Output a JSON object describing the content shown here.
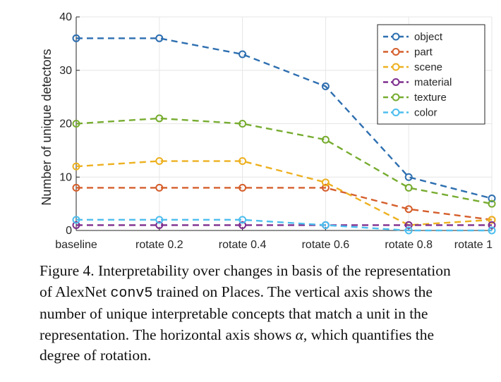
{
  "chart_data": {
    "type": "line",
    "categories": [
      "baseline",
      "rotate 0.2",
      "rotate 0.4",
      "rotate 0.6",
      "rotate 0.8",
      "rotate 1"
    ],
    "series": [
      {
        "name": "object",
        "color": "#2E6FB0",
        "values": [
          36,
          36,
          33,
          27,
          10,
          6
        ]
      },
      {
        "name": "part",
        "color": "#D55E2B",
        "values": [
          8,
          8,
          8,
          8,
          4,
          2
        ]
      },
      {
        "name": "scene",
        "color": "#EDB120",
        "values": [
          12,
          13,
          13,
          9,
          1,
          2
        ]
      },
      {
        "name": "material",
        "color": "#7E2F8E",
        "values": [
          1,
          1,
          1,
          1,
          1,
          1
        ]
      },
      {
        "name": "texture",
        "color": "#77AC30",
        "values": [
          20,
          21,
          20,
          17,
          8,
          5
        ]
      },
      {
        "name": "color",
        "color": "#4DBEEE",
        "values": [
          2,
          2,
          2,
          1,
          0,
          0
        ]
      }
    ],
    "ylabel": "Number of unique detectors",
    "xlabel": "",
    "ylim": [
      0,
      40
    ],
    "yticks": [
      0,
      10,
      20,
      30,
      40
    ],
    "grid": true,
    "legend_position": "top-right",
    "line_style": "dashed",
    "marker": "open-circle"
  },
  "caption": {
    "line1": "Figure 4. Interpretability over changes in basis of the representation",
    "line2_pre": "of AlexNet ",
    "line2_code": "conv5",
    "line2_post": " trained on Places. The vertical axis shows the",
    "line3": "number of unique interpretable concepts that match a unit in the",
    "line4_pre": "representation. The horizontal axis shows ",
    "line4_symbol": "α",
    "line4_post": ", which quantifies the",
    "line5": "degree of rotation."
  }
}
